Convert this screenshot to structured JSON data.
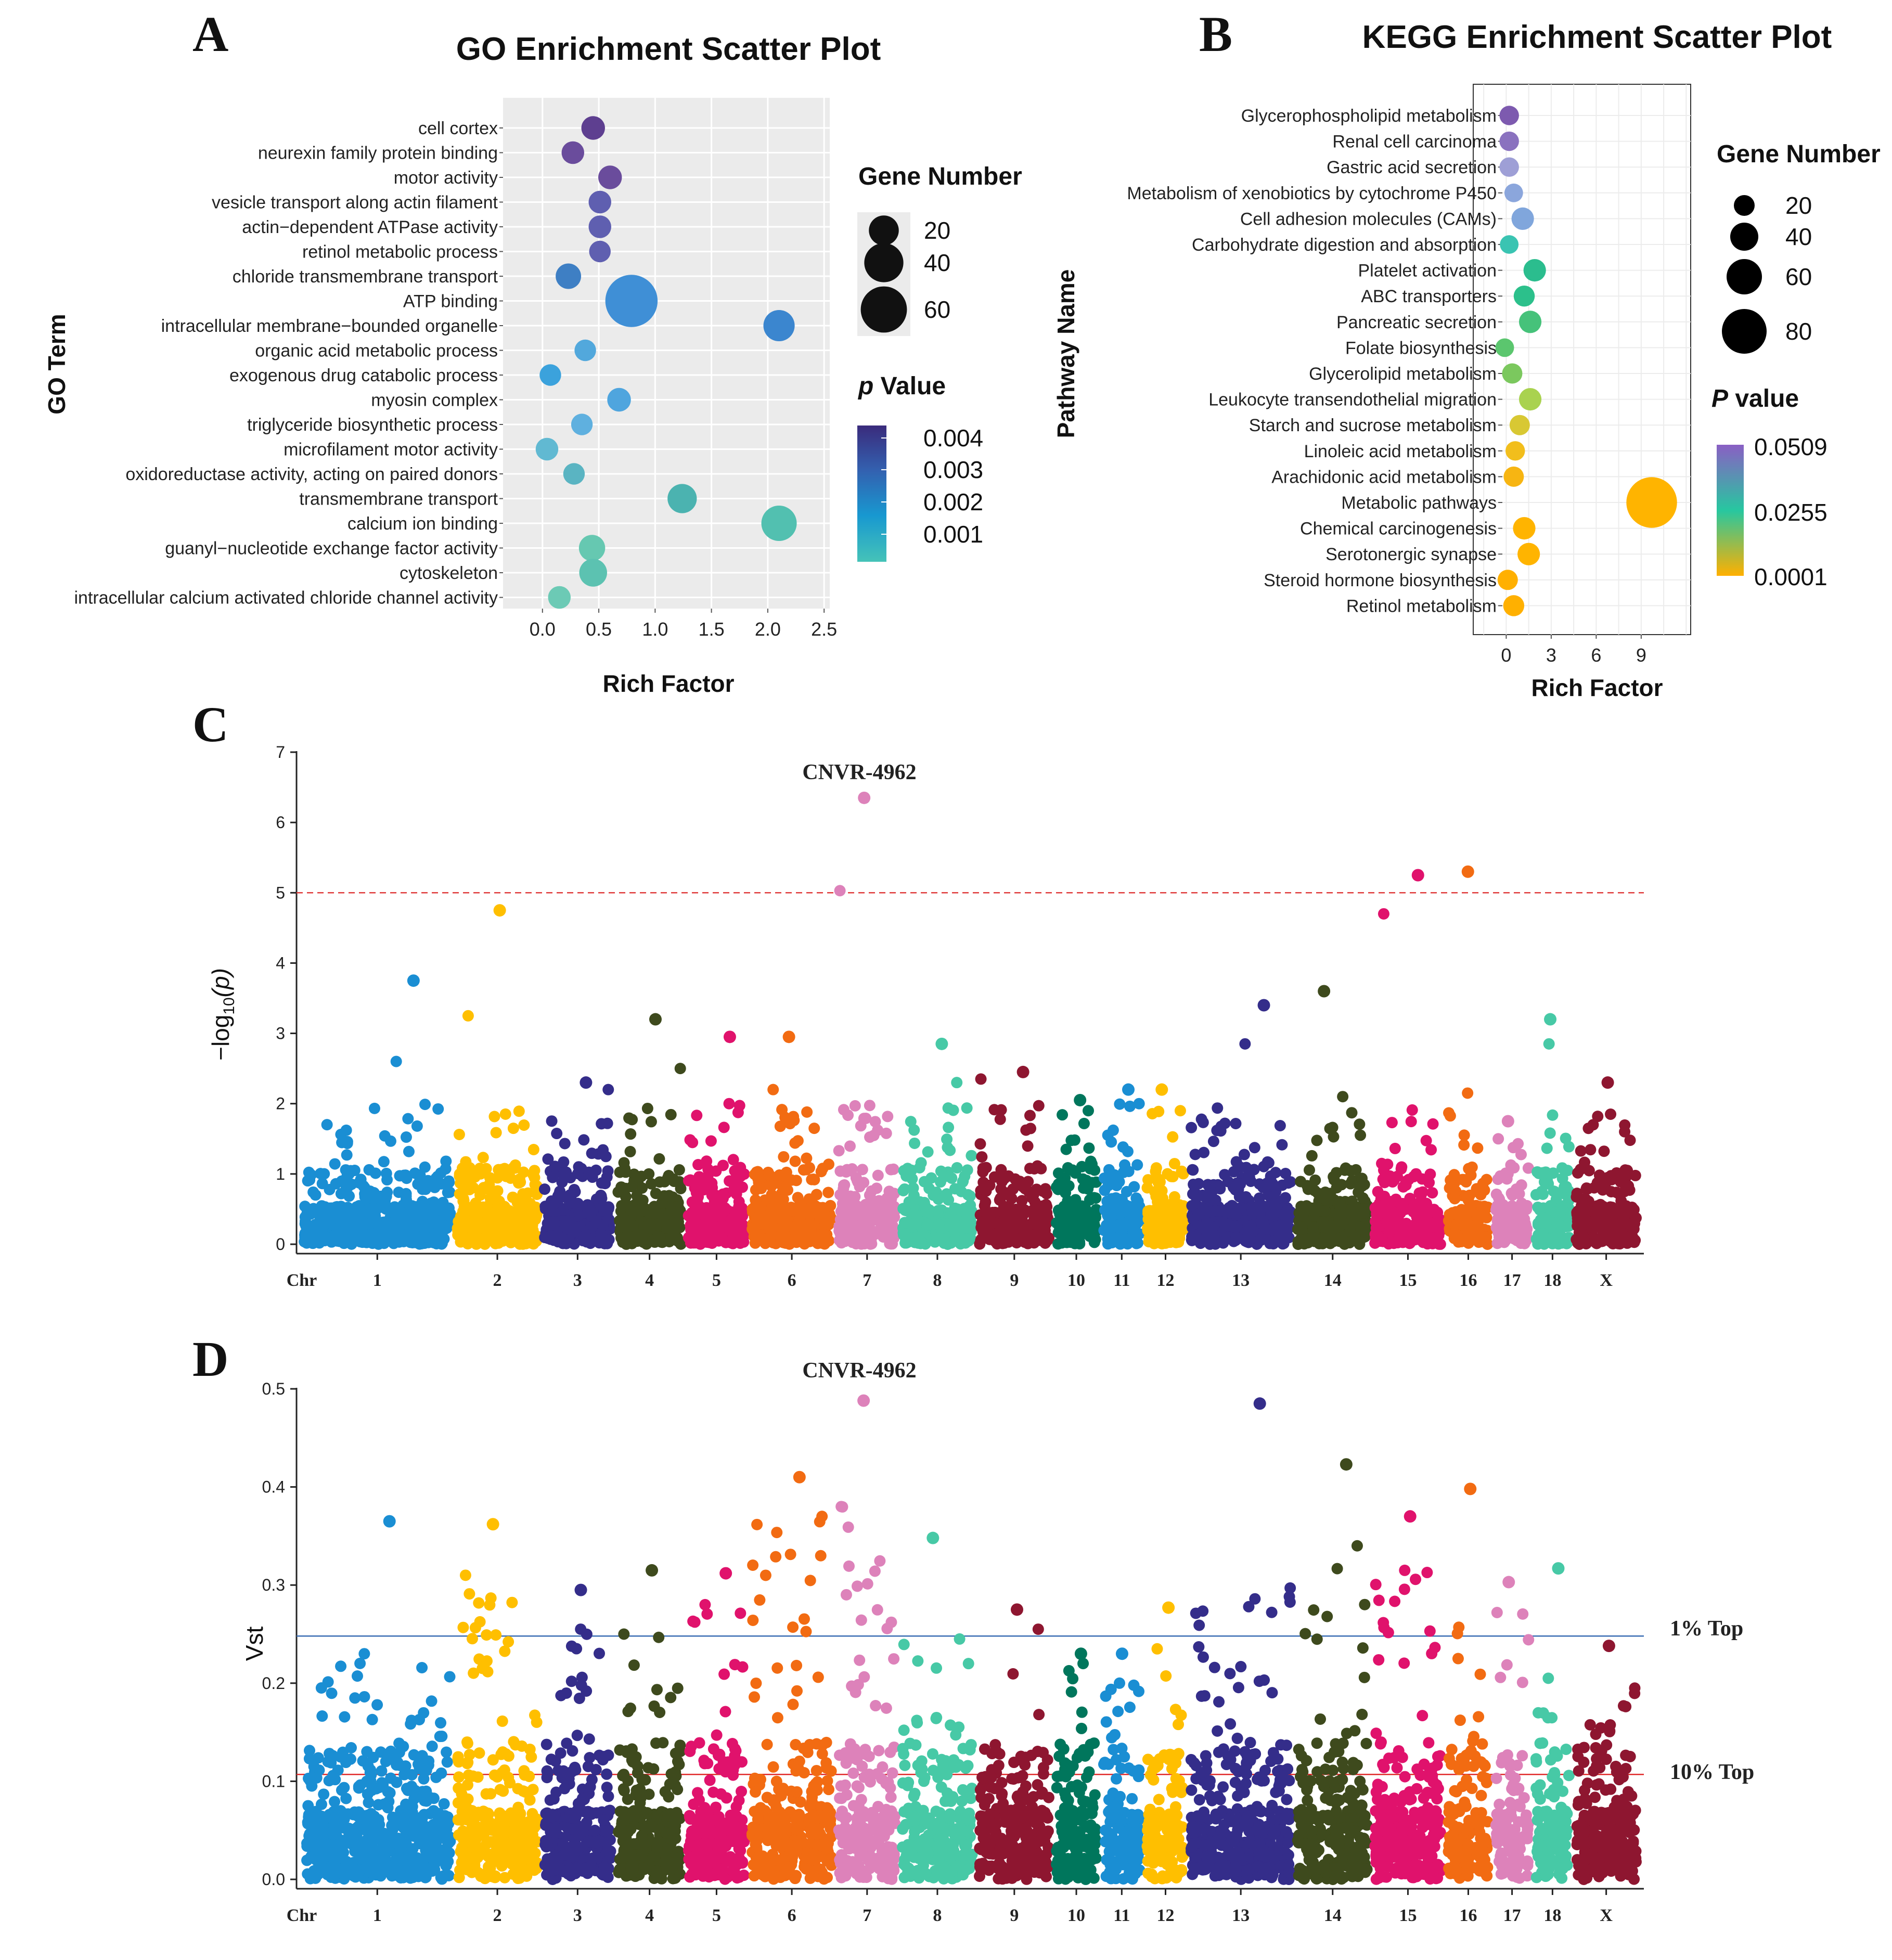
{
  "panels": {
    "a": "A",
    "b": "B",
    "c": "C",
    "d": "D"
  },
  "chart_data": [
    {
      "type": "scatter",
      "id": "go",
      "title": "GO Enrichment Scatter Plot",
      "xlabel": "Rich Factor",
      "ylabel": "GO Term",
      "xlim": [
        -0.35,
        2.55
      ],
      "xticks": [
        "0.0",
        "0.5",
        "1.0",
        "1.5",
        "2.0",
        "2.5"
      ],
      "xtick_values": [
        0,
        0.5,
        1.0,
        1.5,
        2.0,
        2.5
      ],
      "size_legend_title": "Gene Number",
      "size_legend": [
        20,
        40,
        60
      ],
      "color_legend_title_p": "p",
      "color_legend_title_rest": " Value",
      "color_legend": [
        "0.004",
        "0.003",
        "0.002",
        "0.001"
      ],
      "color_scale": [
        "#3a2b7c",
        "#3361b0",
        "#1898d0",
        "#45c3b8"
      ],
      "terms": [
        {
          "name": "cell cortex",
          "rich": 0.45,
          "genes": 8,
          "color": "#5e3f90"
        },
        {
          "name": "neurexin family protein binding",
          "rich": 0.27,
          "genes": 7,
          "color": "#6a4c9c"
        },
        {
          "name": "motor activity",
          "rich": 0.6,
          "genes": 8,
          "color": "#6a4c9c"
        },
        {
          "name": "vesicle transport along actin filament",
          "rich": 0.51,
          "genes": 7,
          "color": "#5f5fb0"
        },
        {
          "name": "actin−dependent ATPase activity",
          "rich": 0.51,
          "genes": 7,
          "color": "#5f5fb0"
        },
        {
          "name": "retinol metabolic process",
          "rich": 0.51,
          "genes": 6,
          "color": "#5f5fb0"
        },
        {
          "name": "chloride transmembrane transport",
          "rich": 0.23,
          "genes": 10,
          "color": "#3e7fc4"
        },
        {
          "name": "ATP binding",
          "rich": 0.79,
          "genes": 66,
          "color": "#3f8fd6"
        },
        {
          "name": "intracellular membrane−bounded organelle",
          "rich": 2.1,
          "genes": 18,
          "color": "#3b86cf"
        },
        {
          "name": "organic acid metabolic process",
          "rich": 0.38,
          "genes": 6,
          "color": "#52a8dc"
        },
        {
          "name": "exogenous drug catabolic process",
          "rich": 0.07,
          "genes": 6,
          "color": "#3ba2dc"
        },
        {
          "name": "myosin complex",
          "rich": 0.68,
          "genes": 8,
          "color": "#4fa5de"
        },
        {
          "name": "triglyceride biosynthetic process",
          "rich": 0.35,
          "genes": 6,
          "color": "#5fb0df"
        },
        {
          "name": "microfilament motor activity",
          "rich": 0.04,
          "genes": 7,
          "color": "#61b9d2"
        },
        {
          "name": "oxidoreductase activity, acting on paired donors",
          "rich": 0.28,
          "genes": 6,
          "color": "#5ab4c2"
        },
        {
          "name": "transmembrane transport",
          "rich": 1.24,
          "genes": 15,
          "color": "#4bb3b0"
        },
        {
          "name": "calcium ion binding",
          "rich": 2.1,
          "genes": 25,
          "color": "#52c0b0"
        },
        {
          "name": "guanyl−nucleotide exchange factor activity",
          "rich": 0.44,
          "genes": 11,
          "color": "#66c8b1"
        },
        {
          "name": "cytoskeleton",
          "rich": 0.45,
          "genes": 13,
          "color": "#5cc2b1"
        },
        {
          "name": "intracellular calcium activated chloride channel activity",
          "rich": 0.15,
          "genes": 7,
          "color": "#6ccab5"
        }
      ]
    },
    {
      "type": "scatter",
      "id": "kegg",
      "title": "KEGG Enrichment Scatter Plot",
      "xlabel": "Rich Factor",
      "ylabel": "Pathway Name",
      "xlim": [
        -2.2,
        12.3
      ],
      "xticks": [
        "0",
        "3",
        "6",
        "9"
      ],
      "xtick_values": [
        0,
        3,
        6,
        9
      ],
      "size_legend_title": "Gene Number",
      "size_legend": [
        20,
        40,
        60,
        80
      ],
      "color_legend_title_p": "P",
      "color_legend_title_rest": " value",
      "color_legend": [
        "0.0509",
        "0.0255",
        "0.0001"
      ],
      "color_scale": [
        "#8a5fc4",
        "#27c7a0",
        "#ffb000"
      ],
      "pathways": [
        {
          "name": "Glycerophospholipid metabolism",
          "rich": 0.2,
          "genes": 8,
          "color": "#7d5aaf"
        },
        {
          "name": "Renal cell carcinoma",
          "rich": 0.2,
          "genes": 8,
          "color": "#8a72bf"
        },
        {
          "name": "Gastric acid secretion",
          "rich": 0.2,
          "genes": 8,
          "color": "#9e9fd6"
        },
        {
          "name": "Metabolism of xenobiotics by cytochrome P450",
          "rich": 0.5,
          "genes": 7,
          "color": "#8ba6dc"
        },
        {
          "name": "Cell adhesion molecules (CAMs)",
          "rich": 1.1,
          "genes": 12,
          "color": "#80a6dc"
        },
        {
          "name": "Carbohydrate digestion and absorption",
          "rich": 0.2,
          "genes": 7,
          "color": "#3ac4b2"
        },
        {
          "name": "Platelet activation",
          "rich": 1.9,
          "genes": 12,
          "color": "#2bbd8e"
        },
        {
          "name": "ABC transporters",
          "rich": 1.2,
          "genes": 10,
          "color": "#2cc08b"
        },
        {
          "name": "Pancreatic secretion",
          "rich": 1.6,
          "genes": 12,
          "color": "#46c27a"
        },
        {
          "name": "Folate biosynthesis",
          "rich": -0.1,
          "genes": 7,
          "color": "#5bc66e"
        },
        {
          "name": "Glycerolipid metabolism",
          "rich": 0.4,
          "genes": 9,
          "color": "#7bc85e"
        },
        {
          "name": "Leukocyte transendothelial migration",
          "rich": 1.6,
          "genes": 12,
          "color": "#a9d24f"
        },
        {
          "name": "Starch and sucrose metabolism",
          "rich": 0.9,
          "genes": 9,
          "color": "#d8c833"
        },
        {
          "name": "Linoleic acid metabolism",
          "rich": 0.6,
          "genes": 8,
          "color": "#f2be1c"
        },
        {
          "name": "Arachidonic acid metabolism",
          "rich": 0.5,
          "genes": 9,
          "color": "#f7b512"
        },
        {
          "name": "Metabolic pathways",
          "rich": 9.7,
          "genes": 90,
          "color": "#ffb400"
        },
        {
          "name": "Chemical carcinogenesis",
          "rich": 1.2,
          "genes": 12,
          "color": "#ffb400"
        },
        {
          "name": "Serotonergic synapse",
          "rich": 1.5,
          "genes": 12,
          "color": "#ffb400"
        },
        {
          "name": "Steroid hormone biosynthesis",
          "rich": 0.1,
          "genes": 9,
          "color": "#ffb000"
        },
        {
          "name": "Retinol metabolism",
          "rich": 0.5,
          "genes": 10,
          "color": "#ffb000"
        }
      ]
    },
    {
      "type": "scatter",
      "id": "manhattan_p",
      "subtype": "manhattan",
      "ylabel_pre": "−log",
      "ylabel_sub": "10",
      "ylabel_post": "(p)",
      "ylim": [
        0,
        7
      ],
      "yticks": [
        "0",
        "1",
        "2",
        "3",
        "4",
        "5",
        "6",
        "7"
      ],
      "threshold": 5,
      "threshold_color": "#e03c3c",
      "annotation": "CNVR-4962",
      "annotation_chr": "7",
      "x_first_label": "Chr",
      "chromosomes": [
        {
          "chr": "1",
          "rel": 2.2,
          "color": "#1a8ed3",
          "peak": 3.75,
          "max": 2.6
        },
        {
          "chr": "2",
          "rel": 1.2,
          "color": "#ffbf00",
          "peak": 4.75,
          "max": 3.25
        },
        {
          "chr": "3",
          "rel": 1.0,
          "color": "#342d8a",
          "peak": 2.3,
          "max": 2.2
        },
        {
          "chr": "4",
          "rel": 0.95,
          "color": "#3e4a1d",
          "peak": 3.2,
          "max": 2.5
        },
        {
          "chr": "5",
          "rel": 0.85,
          "color": "#e0126c",
          "peak": 2.95,
          "max": 2.0
        },
        {
          "chr": "6",
          "rel": 1.2,
          "color": "#f26b12",
          "peak": 2.95,
          "max": 2.2
        },
        {
          "chr": "7",
          "rel": 0.85,
          "color": "#dd82ba",
          "peak": 6.35,
          "max": 5.03
        },
        {
          "chr": "8",
          "rel": 1.05,
          "color": "#47c9a6",
          "peak": 2.85,
          "max": 2.3
        },
        {
          "chr": "9",
          "rel": 1.05,
          "color": "#8e1630",
          "peak": 2.45,
          "max": 2.35
        },
        {
          "chr": "10",
          "rel": 0.6,
          "color": "#00765c",
          "peak": 2.05,
          "max": 1.9
        },
        {
          "chr": "11",
          "rel": 0.55,
          "color": "#1a8ed3",
          "peak": 2.2,
          "max": 2.0
        },
        {
          "chr": "12",
          "rel": 0.55,
          "color": "#ffbf00",
          "peak": 2.2,
          "max": 1.9
        },
        {
          "chr": "13",
          "rel": 1.5,
          "color": "#342d8a",
          "peak": 3.4,
          "max": 2.85
        },
        {
          "chr": "14",
          "rel": 1.05,
          "color": "#3e4a1d",
          "peak": 3.6,
          "max": 2.1
        },
        {
          "chr": "15",
          "rel": 1.0,
          "color": "#e0126c",
          "peak": 5.25,
          "max": 4.7
        },
        {
          "chr": "16",
          "rel": 0.6,
          "color": "#f26b12",
          "peak": 5.3,
          "max": 2.15
        },
        {
          "chr": "17",
          "rel": 0.5,
          "color": "#dd82ba",
          "peak": 1.75,
          "max": 1.5
        },
        {
          "chr": "18",
          "rel": 0.5,
          "color": "#47c9a6",
          "peak": 3.2,
          "max": 2.85
        },
        {
          "chr": "X",
          "rel": 0.9,
          "color": "#8e1630",
          "peak": 2.3,
          "max": 1.85
        }
      ]
    },
    {
      "type": "scatter",
      "id": "manhattan_vst",
      "subtype": "manhattan",
      "ylabel": "Vst",
      "ylim": [
        0,
        0.5
      ],
      "yticks": [
        "0.0",
        "0.1",
        "0.2",
        "0.3",
        "0.4",
        "0.5"
      ],
      "threshold_top1": 0.248,
      "threshold_top10": 0.107,
      "top1_label": "1% Top",
      "top10_label": "10% Top",
      "top1_color": "#3b6db3",
      "top10_color": "#e02a2a",
      "annotation": "CNVR-4962",
      "annotation_chr": "7",
      "x_first_label": "Chr",
      "chromosomes": [
        {
          "chr": "1",
          "peak": 0.365,
          "max": 0.23
        },
        {
          "chr": "2",
          "peak": 0.362,
          "max": 0.31
        },
        {
          "chr": "3",
          "peak": 0.295,
          "max": 0.255
        },
        {
          "chr": "4",
          "peak": 0.315,
          "max": 0.25
        },
        {
          "chr": "5",
          "peak": 0.312,
          "max": 0.28
        },
        {
          "chr": "6",
          "peak": 0.41,
          "max": 0.37
        },
        {
          "chr": "7",
          "peak": 0.488,
          "max": 0.38
        },
        {
          "chr": "8",
          "peak": 0.348,
          "max": 0.245
        },
        {
          "chr": "9",
          "peak": 0.275,
          "max": 0.255
        },
        {
          "chr": "10",
          "peak": 0.23,
          "max": 0.22
        },
        {
          "chr": "11",
          "peak": 0.23,
          "max": 0.2
        },
        {
          "chr": "12",
          "peak": 0.277,
          "max": 0.235
        },
        {
          "chr": "13",
          "peak": 0.485,
          "max": 0.297
        },
        {
          "chr": "14",
          "peak": 0.423,
          "max": 0.34
        },
        {
          "chr": "15",
          "peak": 0.37,
          "max": 0.315
        },
        {
          "chr": "16",
          "peak": 0.398,
          "max": 0.257
        },
        {
          "chr": "17",
          "peak": 0.303,
          "max": 0.272
        },
        {
          "chr": "18",
          "peak": 0.317,
          "max": 0.205
        },
        {
          "chr": "X",
          "peak": 0.238,
          "max": 0.195
        }
      ]
    }
  ]
}
